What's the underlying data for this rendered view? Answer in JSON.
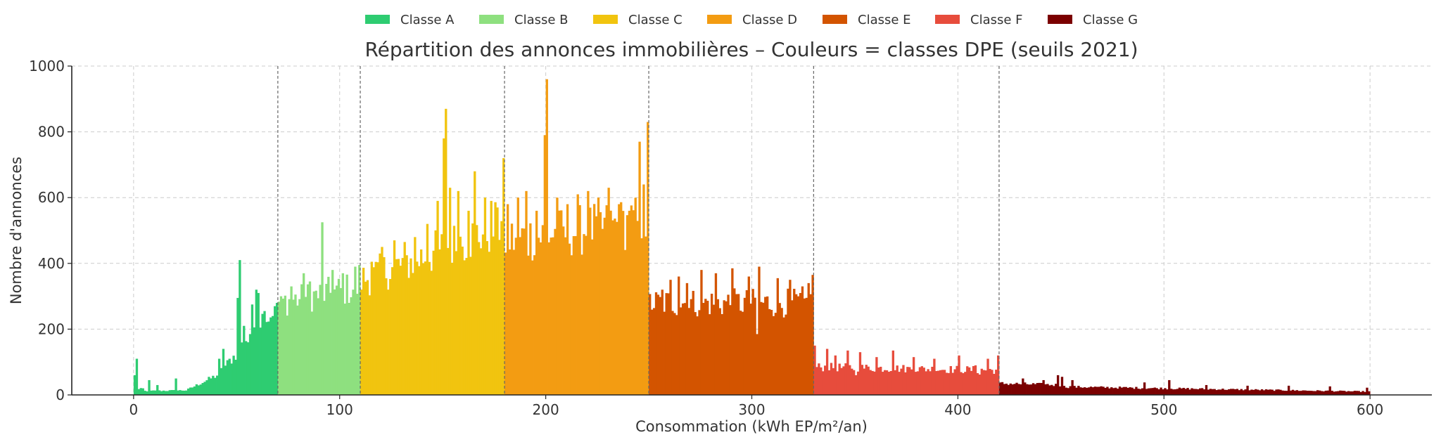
{
  "chart_data": {
    "type": "histogram",
    "title": "Répartition des annonces immobilières – Couleurs = classes DPE (seuils 2021)",
    "xlabel": "Consommation (kWh EP/m²/an)",
    "ylabel": "Nombre d'annonces",
    "xlim": [
      -30,
      630
    ],
    "ylim": [
      0,
      1000
    ],
    "xticks": [
      0,
      100,
      200,
      300,
      400,
      500,
      600
    ],
    "yticks": [
      0,
      200,
      400,
      600,
      800,
      1000
    ],
    "grid": true,
    "legend_position": "top-center",
    "bin_width": 1,
    "thresholds": [
      70,
      110,
      180,
      250,
      330,
      420
    ],
    "classes": [
      {
        "name": "Classe A",
        "color": "#2ecc71",
        "range": [
          0,
          70
        ]
      },
      {
        "name": "Classe B",
        "color": "#8ee07f",
        "range": [
          70,
          110
        ]
      },
      {
        "name": "Classe C",
        "color": "#f1c40f",
        "range": [
          110,
          180
        ]
      },
      {
        "name": "Classe D",
        "color": "#f39c12",
        "range": [
          180,
          250
        ]
      },
      {
        "name": "Classe E",
        "color": "#d35400",
        "range": [
          250,
          330
        ]
      },
      {
        "name": "Classe F",
        "color": "#e74c3c",
        "range": [
          330,
          420
        ]
      },
      {
        "name": "Classe G",
        "color": "#7b0000",
        "range": [
          420,
          600
        ]
      }
    ],
    "segments": [
      {
        "from": 0,
        "to": 5,
        "start": 15,
        "end": 20
      },
      {
        "from": 5,
        "to": 25,
        "start": 12,
        "end": 14
      },
      {
        "from": 25,
        "to": 40,
        "start": 14,
        "end": 60
      },
      {
        "from": 40,
        "to": 50,
        "start": 60,
        "end": 130
      },
      {
        "from": 50,
        "to": 60,
        "start": 130,
        "end": 230
      },
      {
        "from": 60,
        "to": 70,
        "start": 230,
        "end": 250
      },
      {
        "from": 70,
        "to": 110,
        "start": 280,
        "end": 330
      },
      {
        "from": 110,
        "to": 140,
        "start": 350,
        "end": 420
      },
      {
        "from": 140,
        "to": 180,
        "start": 420,
        "end": 520
      },
      {
        "from": 180,
        "to": 250,
        "start": 470,
        "end": 530
      },
      {
        "from": 250,
        "to": 330,
        "start": 280,
        "end": 280
      },
      {
        "from": 330,
        "to": 420,
        "start": 85,
        "end": 75
      },
      {
        "from": 420,
        "to": 450,
        "start": 35,
        "end": 30
      },
      {
        "from": 450,
        "to": 600,
        "start": 25,
        "end": 10
      }
    ],
    "peaks": [
      {
        "x": 1,
        "value": 110
      },
      {
        "x": 0,
        "value": 60
      },
      {
        "x": 7,
        "value": 45
      },
      {
        "x": 11,
        "value": 30
      },
      {
        "x": 20,
        "value": 50
      },
      {
        "x": 41,
        "value": 110
      },
      {
        "x": 43,
        "value": 140
      },
      {
        "x": 46,
        "value": 110
      },
      {
        "x": 50,
        "value": 295
      },
      {
        "x": 51,
        "value": 410
      },
      {
        "x": 53,
        "value": 210
      },
      {
        "x": 55,
        "value": 160
      },
      {
        "x": 57,
        "value": 275
      },
      {
        "x": 59,
        "value": 320
      },
      {
        "x": 60,
        "value": 310
      },
      {
        "x": 63,
        "value": 255
      },
      {
        "x": 67,
        "value": 240
      },
      {
        "x": 69,
        "value": 280
      },
      {
        "x": 71,
        "value": 300
      },
      {
        "x": 76,
        "value": 330
      },
      {
        "x": 82,
        "value": 370
      },
      {
        "x": 85,
        "value": 345
      },
      {
        "x": 91,
        "value": 525
      },
      {
        "x": 96,
        "value": 380
      },
      {
        "x": 101,
        "value": 370
      },
      {
        "x": 107,
        "value": 390
      },
      {
        "x": 109,
        "value": 395
      },
      {
        "x": 115,
        "value": 405
      },
      {
        "x": 120,
        "value": 450
      },
      {
        "x": 126,
        "value": 470
      },
      {
        "x": 131,
        "value": 465
      },
      {
        "x": 136,
        "value": 480
      },
      {
        "x": 142,
        "value": 520
      },
      {
        "x": 147,
        "value": 590
      },
      {
        "x": 150,
        "value": 780
      },
      {
        "x": 151,
        "value": 870
      },
      {
        "x": 153,
        "value": 630
      },
      {
        "x": 157,
        "value": 620
      },
      {
        "x": 162,
        "value": 560
      },
      {
        "x": 165,
        "value": 680
      },
      {
        "x": 170,
        "value": 600
      },
      {
        "x": 173,
        "value": 590
      },
      {
        "x": 176,
        "value": 570
      },
      {
        "x": 179,
        "value": 720
      },
      {
        "x": 181,
        "value": 580
      },
      {
        "x": 186,
        "value": 600
      },
      {
        "x": 190,
        "value": 620
      },
      {
        "x": 195,
        "value": 560
      },
      {
        "x": 199,
        "value": 790
      },
      {
        "x": 200,
        "value": 960
      },
      {
        "x": 205,
        "value": 600
      },
      {
        "x": 210,
        "value": 580
      },
      {
        "x": 215,
        "value": 610
      },
      {
        "x": 220,
        "value": 620
      },
      {
        "x": 225,
        "value": 600
      },
      {
        "x": 230,
        "value": 630
      },
      {
        "x": 235,
        "value": 580
      },
      {
        "x": 240,
        "value": 560
      },
      {
        "x": 245,
        "value": 770
      },
      {
        "x": 247,
        "value": 640
      },
      {
        "x": 249,
        "value": 830
      },
      {
        "x": 256,
        "value": 320
      },
      {
        "x": 260,
        "value": 350
      },
      {
        "x": 264,
        "value": 360
      },
      {
        "x": 268,
        "value": 340
      },
      {
        "x": 275,
        "value": 380
      },
      {
        "x": 282,
        "value": 370
      },
      {
        "x": 290,
        "value": 385
      },
      {
        "x": 298,
        "value": 360
      },
      {
        "x": 303,
        "value": 390
      },
      {
        "x": 312,
        "value": 355
      },
      {
        "x": 318,
        "value": 350
      },
      {
        "x": 324,
        "value": 330
      },
      {
        "x": 327,
        "value": 340
      },
      {
        "x": 329,
        "value": 365
      },
      {
        "x": 330,
        "value": 150
      },
      {
        "x": 336,
        "value": 140
      },
      {
        "x": 340,
        "value": 120
      },
      {
        "x": 346,
        "value": 135
      },
      {
        "x": 352,
        "value": 130
      },
      {
        "x": 360,
        "value": 115
      },
      {
        "x": 368,
        "value": 135
      },
      {
        "x": 378,
        "value": 115
      },
      {
        "x": 388,
        "value": 110
      },
      {
        "x": 400,
        "value": 120
      },
      {
        "x": 408,
        "value": 90
      },
      {
        "x": 414,
        "value": 110
      },
      {
        "x": 419,
        "value": 120
      },
      {
        "x": 431,
        "value": 50
      },
      {
        "x": 441,
        "value": 45
      },
      {
        "x": 448,
        "value": 60
      },
      {
        "x": 450,
        "value": 55
      },
      {
        "x": 455,
        "value": 45
      },
      {
        "x": 490,
        "value": 38
      },
      {
        "x": 502,
        "value": 45
      },
      {
        "x": 520,
        "value": 30
      },
      {
        "x": 540,
        "value": 28
      },
      {
        "x": 560,
        "value": 28
      },
      {
        "x": 580,
        "value": 26
      },
      {
        "x": 598,
        "value": 22
      }
    ],
    "dips": [
      {
        "x": 302,
        "value": 185
      },
      {
        "x": 350,
        "value": 60
      },
      {
        "x": 410,
        "value": 62
      }
    ]
  }
}
